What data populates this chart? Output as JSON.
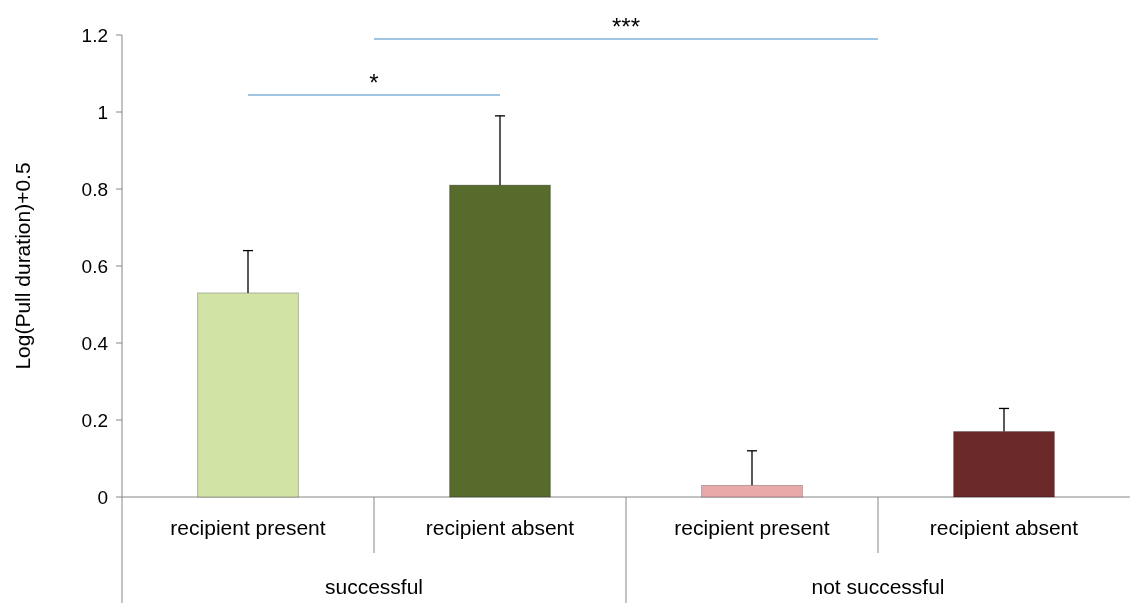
{
  "chart_data": {
    "type": "bar",
    "ylabel": "Log(Pull duration)+0.5",
    "categories": [
      "recipient present",
      "recipient absent",
      "recipient present",
      "recipient absent"
    ],
    "values": [
      0.53,
      0.81,
      0.03,
      0.17
    ],
    "colors": [
      "#d1e3a5",
      "#566b2c",
      "#e9a9a9",
      "#6b2929"
    ],
    "errors": [
      0.11,
      0.18,
      0.09,
      0.06
    ],
    "ylim": [
      0,
      1.2
    ],
    "yticks": [
      0,
      {
        "value": 0.2,
        "label": "0.2"
      },
      {
        "value": 0.4,
        "label": "0.4"
      },
      {
        "value": 0.6,
        "label": "0.6"
      },
      {
        "value": 0.8,
        "label": "0.8"
      },
      1,
      {
        "value": 1.2,
        "label": "1.2"
      }
    ],
    "annotations": [
      "*",
      "***",
      "successful",
      "not successful"
    ],
    "grid": false
  }
}
